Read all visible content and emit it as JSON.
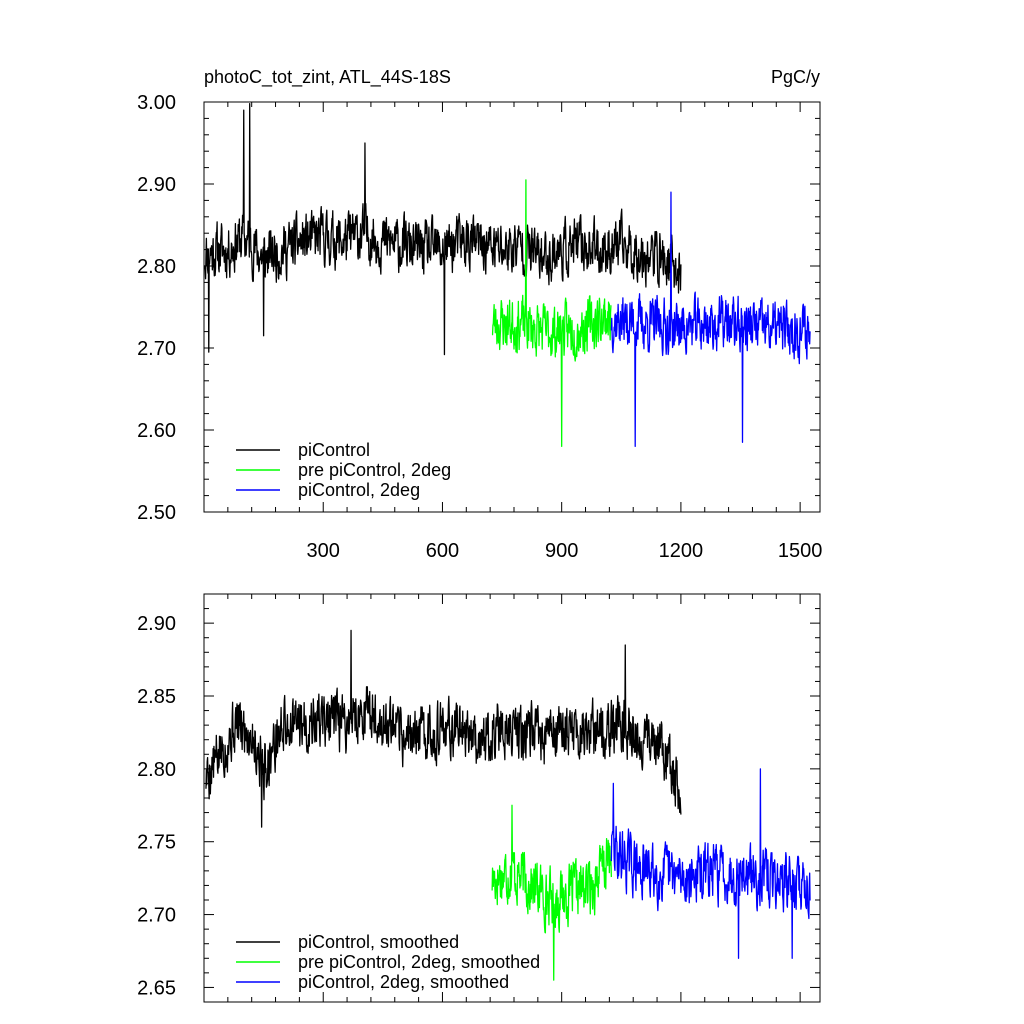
{
  "chart_data": [
    {
      "type": "line",
      "title": "photoC_tot_zint, ATL_44S-18S",
      "units": "PgC/y",
      "xlim": [
        0,
        1550
      ],
      "ylim": [
        2.5,
        3.0
      ],
      "xticks": [
        300,
        600,
        900,
        1200,
        1500
      ],
      "xtick_labels": [
        "300",
        "600",
        "900",
        "1200",
        "1500"
      ],
      "yticks": [
        2.5,
        2.6,
        2.7,
        2.8,
        2.9,
        3.0
      ],
      "ytick_labels": [
        "2.50",
        "2.60",
        "2.70",
        "2.80",
        "2.90",
        "3.00"
      ],
      "legend_position": "bottom-left",
      "series": [
        {
          "name": "piControl",
          "color": "#000000",
          "x_start": 1,
          "x_end": 1200,
          "anchors": [
            [
              0,
              2.815
            ],
            [
              60,
              2.82
            ],
            [
              100,
              2.835
            ],
            [
              150,
              2.81
            ],
            [
              200,
              2.82
            ],
            [
              250,
              2.83
            ],
            [
              300,
              2.835
            ],
            [
              350,
              2.83
            ],
            [
              400,
              2.84
            ],
            [
              450,
              2.83
            ],
            [
              500,
              2.825
            ],
            [
              550,
              2.82
            ],
            [
              600,
              2.82
            ],
            [
              650,
              2.83
            ],
            [
              700,
              2.825
            ],
            [
              750,
              2.82
            ],
            [
              800,
              2.825
            ],
            [
              850,
              2.81
            ],
            [
              900,
              2.82
            ],
            [
              950,
              2.825
            ],
            [
              1000,
              2.82
            ],
            [
              1050,
              2.825
            ],
            [
              1100,
              2.815
            ],
            [
              1150,
              2.81
            ],
            [
              1200,
              2.79
            ]
          ],
          "noise": 0.05,
          "seed": 11,
          "spikes": [
            [
              100,
              2.99
            ],
            [
              115,
              2.998
            ],
            [
              405,
              2.95
            ],
            [
              12,
              2.695
            ],
            [
              150,
              2.715
            ],
            [
              605,
              2.692
            ]
          ]
        },
        {
          "name": "pre piControl, 2deg",
          "color": "#00ff00",
          "x_start": 725,
          "x_end": 1025,
          "anchors": [
            [
              725,
              2.73
            ],
            [
              800,
              2.73
            ],
            [
              850,
              2.72
            ],
            [
              900,
              2.72
            ],
            [
              950,
              2.725
            ],
            [
              1025,
              2.74
            ]
          ],
          "noise": 0.05,
          "seed": 23,
          "spikes": [
            [
              810,
              2.905
            ],
            [
              900,
              2.58
            ]
          ]
        },
        {
          "name": "piControl, 2deg",
          "color": "#0000ff",
          "x_start": 1025,
          "x_end": 1525,
          "anchors": [
            [
              1025,
              2.735
            ],
            [
              1100,
              2.73
            ],
            [
              1200,
              2.725
            ],
            [
              1300,
              2.73
            ],
            [
              1400,
              2.725
            ],
            [
              1525,
              2.72
            ]
          ],
          "noise": 0.05,
          "seed": 37,
          "spikes": [
            [
              1175,
              2.89
            ],
            [
              1085,
              2.58
            ],
            [
              1355,
              2.585
            ]
          ]
        }
      ]
    },
    {
      "type": "line",
      "title": "",
      "xlim": [
        0,
        1550
      ],
      "ylim": [
        2.64,
        2.92
      ],
      "xticks": [
        300,
        600,
        900,
        1200,
        1500
      ],
      "xtick_labels": [
        "",
        "",
        "",
        "",
        ""
      ],
      "yticks": [
        2.65,
        2.7,
        2.75,
        2.8,
        2.85,
        2.9
      ],
      "ytick_labels": [
        "2.65",
        "2.70",
        "2.75",
        "2.80",
        "2.85",
        "2.90"
      ],
      "legend_position": "bottom-left",
      "series": [
        {
          "name": "piControl, smoothed",
          "color": "#000000",
          "x_start": 5,
          "x_end": 1200,
          "anchors": [
            [
              5,
              2.795
            ],
            [
              40,
              2.81
            ],
            [
              80,
              2.83
            ],
            [
              120,
              2.825
            ],
            [
              150,
              2.8
            ],
            [
              200,
              2.83
            ],
            [
              250,
              2.83
            ],
            [
              300,
              2.835
            ],
            [
              350,
              2.83
            ],
            [
              400,
              2.84
            ],
            [
              450,
              2.83
            ],
            [
              500,
              2.82
            ],
            [
              550,
              2.825
            ],
            [
              600,
              2.825
            ],
            [
              650,
              2.83
            ],
            [
              700,
              2.82
            ],
            [
              750,
              2.83
            ],
            [
              800,
              2.825
            ],
            [
              850,
              2.82
            ],
            [
              900,
              2.825
            ],
            [
              950,
              2.825
            ],
            [
              1000,
              2.825
            ],
            [
              1050,
              2.83
            ],
            [
              1100,
              2.82
            ],
            [
              1150,
              2.815
            ],
            [
              1200,
              2.785
            ]
          ],
          "noise": 0.03,
          "seed": 5,
          "spikes": [
            [
              370,
              2.895
            ],
            [
              1060,
              2.885
            ],
            [
              145,
              2.76
            ]
          ]
        },
        {
          "name": "pre piControl, 2deg, smoothed",
          "color": "#00ff00",
          "x_start": 725,
          "x_end": 1025,
          "anchors": [
            [
              725,
              2.725
            ],
            [
              775,
              2.73
            ],
            [
              825,
              2.72
            ],
            [
              875,
              2.71
            ],
            [
              925,
              2.715
            ],
            [
              975,
              2.72
            ],
            [
              1025,
              2.74
            ]
          ],
          "noise": 0.03,
          "seed": 17,
          "spikes": [
            [
              775,
              2.775
            ],
            [
              880,
              2.655
            ]
          ]
        },
        {
          "name": "piControl, 2deg, smoothed",
          "color": "#0000ff",
          "x_start": 1025,
          "x_end": 1525,
          "anchors": [
            [
              1025,
              2.745
            ],
            [
              1100,
              2.73
            ],
            [
              1200,
              2.725
            ],
            [
              1300,
              2.73
            ],
            [
              1400,
              2.725
            ],
            [
              1525,
              2.72
            ]
          ],
          "noise": 0.03,
          "seed": 29,
          "spikes": [
            [
              1030,
              2.79
            ],
            [
              1400,
              2.8
            ],
            [
              1345,
              2.67
            ],
            [
              1480,
              2.67
            ]
          ]
        }
      ]
    }
  ]
}
